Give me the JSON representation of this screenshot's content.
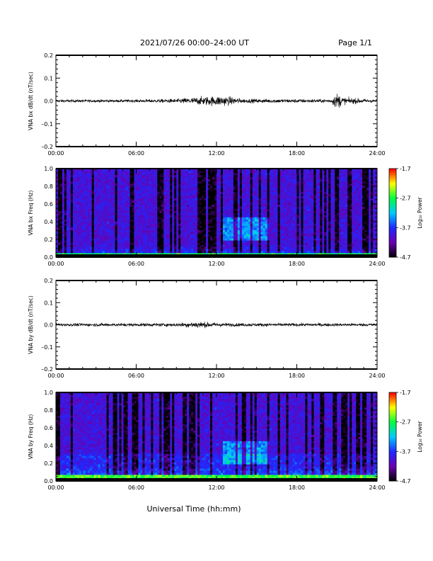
{
  "header": {
    "title": "2021/07/26  00:00–24:00 UT",
    "page": "Page 1/1"
  },
  "chart_data": [
    {
      "type": "line",
      "ylabel": "VNA bx dB/dt (nT/sec)",
      "xlim": [
        "00:00",
        "24:00"
      ],
      "ylim": [
        -0.2,
        0.2
      ],
      "x_tick_labels": [
        "00:00",
        "06:00",
        "12:00",
        "18:00",
        "24:00"
      ],
      "y_tick_labels": [
        "0.2",
        "0.1",
        "0.0",
        "–0.1",
        "–0.2"
      ],
      "series_color": "#000000",
      "baseline": 0.0,
      "noise_envelope": [
        {
          "x": "00:00",
          "amp": 0.008
        },
        {
          "x": "06:00",
          "amp": 0.008
        },
        {
          "x": "09:00",
          "amp": 0.012
        },
        {
          "x": "11:00",
          "amp": 0.025
        },
        {
          "x": "12:30",
          "amp": 0.03
        },
        {
          "x": "14:00",
          "amp": 0.012
        },
        {
          "x": "20:30",
          "amp": 0.01
        },
        {
          "x": "21:00",
          "amp": 0.045
        },
        {
          "x": "21:30",
          "amp": 0.02
        },
        {
          "x": "24:00",
          "amp": 0.008
        }
      ]
    },
    {
      "type": "heatmap",
      "ylabel": "VNA bx Freq (Hz)",
      "xlim": [
        "00:00",
        "24:00"
      ],
      "ylim": [
        0.0,
        1.0
      ],
      "x_tick_labels": [
        "00:00",
        "06:00",
        "12:00",
        "18:00",
        "24:00"
      ],
      "y_tick_labels": [
        "1.0",
        "0.8",
        "0.6",
        "0.4",
        "0.2",
        "0.0"
      ],
      "colorbar": {
        "label": "Log₁₀ Power",
        "ticks": [
          "-1.7",
          "-2.7",
          "-3.7",
          "-4.7"
        ],
        "min": -4.7,
        "max": -1.7
      },
      "colors": [
        "#000000",
        "#6a00b0",
        "#1e28ff",
        "#00c8ff",
        "#00ff40",
        "#ffff00",
        "#ff0000"
      ],
      "features": [
        {
          "desc": "enhanced band",
          "x_start": "12:30",
          "x_end": "16:00",
          "freq": [
            0.2,
            0.45
          ]
        },
        {
          "desc": "low-frequency band",
          "freq": [
            0.0,
            0.04
          ]
        }
      ]
    },
    {
      "type": "line",
      "ylabel": "VNA by dB/dt (nT/sec)",
      "xlim": [
        "00:00",
        "24:00"
      ],
      "ylim": [
        -0.2,
        0.2
      ],
      "x_tick_labels": [
        "00:00",
        "06:00",
        "12:00",
        "18:00",
        "24:00"
      ],
      "y_tick_labels": [
        "0.2",
        "0.1",
        "0.0",
        "–0.1",
        "–0.2"
      ],
      "series_color": "#000000",
      "baseline": 0.0,
      "noise_envelope": [
        {
          "x": "00:00",
          "amp": 0.009
        },
        {
          "x": "09:00",
          "amp": 0.01
        },
        {
          "x": "10:30",
          "amp": 0.02
        },
        {
          "x": "11:30",
          "amp": 0.015
        },
        {
          "x": "13:00",
          "amp": 0.01
        },
        {
          "x": "24:00",
          "amp": 0.009
        }
      ]
    },
    {
      "type": "heatmap",
      "ylabel": "VNA by Freq (Hz)",
      "xlim": [
        "00:00",
        "24:00"
      ],
      "ylim": [
        0.0,
        1.0
      ],
      "x_tick_labels": [
        "00:00",
        "06:00",
        "12:00",
        "18:00",
        "24:00"
      ],
      "y_tick_labels": [
        "1.0",
        "0.8",
        "0.6",
        "0.4",
        "0.2",
        "0.0"
      ],
      "colorbar": {
        "label": "Log₁₀ Power",
        "ticks": [
          "-1.7",
          "-2.7",
          "-3.7",
          "-4.7"
        ],
        "min": -4.7,
        "max": -1.7
      },
      "colors": [
        "#000000",
        "#6a00b0",
        "#1e28ff",
        "#00c8ff",
        "#00ff40",
        "#ffff00",
        "#ff0000"
      ],
      "features": [
        {
          "desc": "enhanced band",
          "x_start": "12:30",
          "x_end": "16:00",
          "freq": [
            0.2,
            0.45
          ]
        },
        {
          "desc": "low-frequency band",
          "freq": [
            0.0,
            0.06
          ]
        }
      ]
    }
  ],
  "footer": {
    "xlabel": "Universal Time (hh:mm)"
  }
}
